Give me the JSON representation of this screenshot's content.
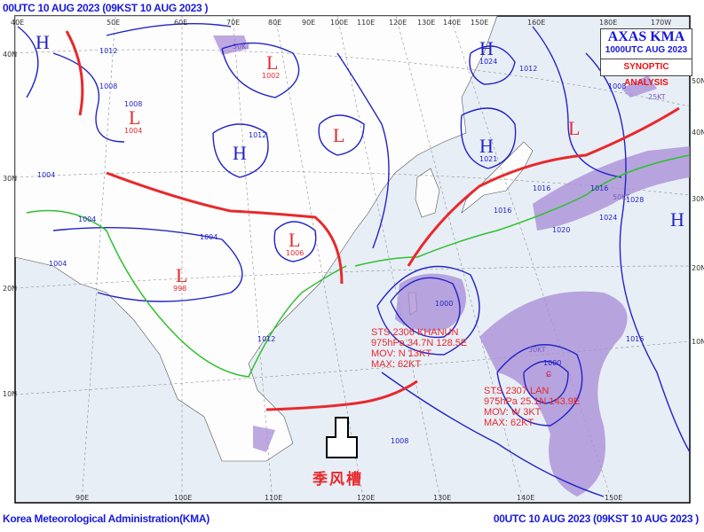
{
  "header": {
    "left": "00UTC 10 AUG 2023 (09KST 10 AUG 2023 )"
  },
  "footer": {
    "left": "Korea Meteorological Administration(KMA)",
    "right": "00UTC 10 AUG 2023 (09KST 10 AUG 2023 )"
  },
  "title_box": {
    "line1": "AXAS KMA",
    "line2": "1000UTC AUG 2023",
    "line3": "SYNOPTIC ANALYSIS"
  },
  "axes": {
    "top": [
      "40E",
      "50E",
      "60E",
      "70E",
      "80E",
      "90E",
      "100E",
      "110E",
      "120E",
      "130E",
      "140E",
      "150E",
      "160E",
      "180E",
      "170W"
    ],
    "bottom": [
      "90E",
      "100E",
      "110E",
      "120E",
      "130E",
      "140E",
      "150E"
    ],
    "left": [
      "40N",
      "30N",
      "20N",
      "10N"
    ],
    "right": [
      "50N",
      "40N",
      "30N",
      "20N",
      "10N"
    ]
  },
  "pressure_systems": [
    {
      "type": "H",
      "value": ""
    },
    {
      "type": "L",
      "value": "1002"
    },
    {
      "type": "L",
      "value": "1004"
    },
    {
      "type": "H",
      "value": ""
    },
    {
      "type": "L",
      "value": ""
    },
    {
      "type": "L",
      "value": "1006"
    },
    {
      "type": "L",
      "value": "998"
    },
    {
      "type": "H",
      "value": "1021"
    },
    {
      "type": "H",
      "value": "1024"
    },
    {
      "type": "H",
      "value": ""
    },
    {
      "type": "L",
      "value": ""
    }
  ],
  "isobar_labels": [
    "1012",
    "1008",
    "1012",
    "1004",
    "1004",
    "1004",
    "1004",
    "1008",
    "1000",
    "1008",
    "1016",
    "1016",
    "1012",
    "1012",
    "1016",
    "1020",
    "1024",
    "1028",
    "1008",
    "1016",
    "1000"
  ],
  "typhoons": [
    {
      "name": "STS 2306 KHANUN",
      "pressure": "975hPa 34.7N 128.5E",
      "movement": "MOV: N 13KT",
      "max": "MAX: 62KT"
    },
    {
      "name": "STS 2307 LAN",
      "pressure": "975hPa 25.1N 143.9E",
      "movement": "MOV: W 3KT",
      "max": "MAX: 62KT"
    }
  ],
  "wind_labels": [
    "30KT",
    "25KT",
    "50KT",
    "30KT"
  ],
  "annotation": {
    "text": "季风槽"
  },
  "colors": {
    "isobar": "#2323c8",
    "front_red": "#e8292c",
    "front_green": "#2ec02e",
    "typhoon_area": "#a78bd6",
    "sea": "#e8eef6",
    "land": "#ffffff"
  }
}
